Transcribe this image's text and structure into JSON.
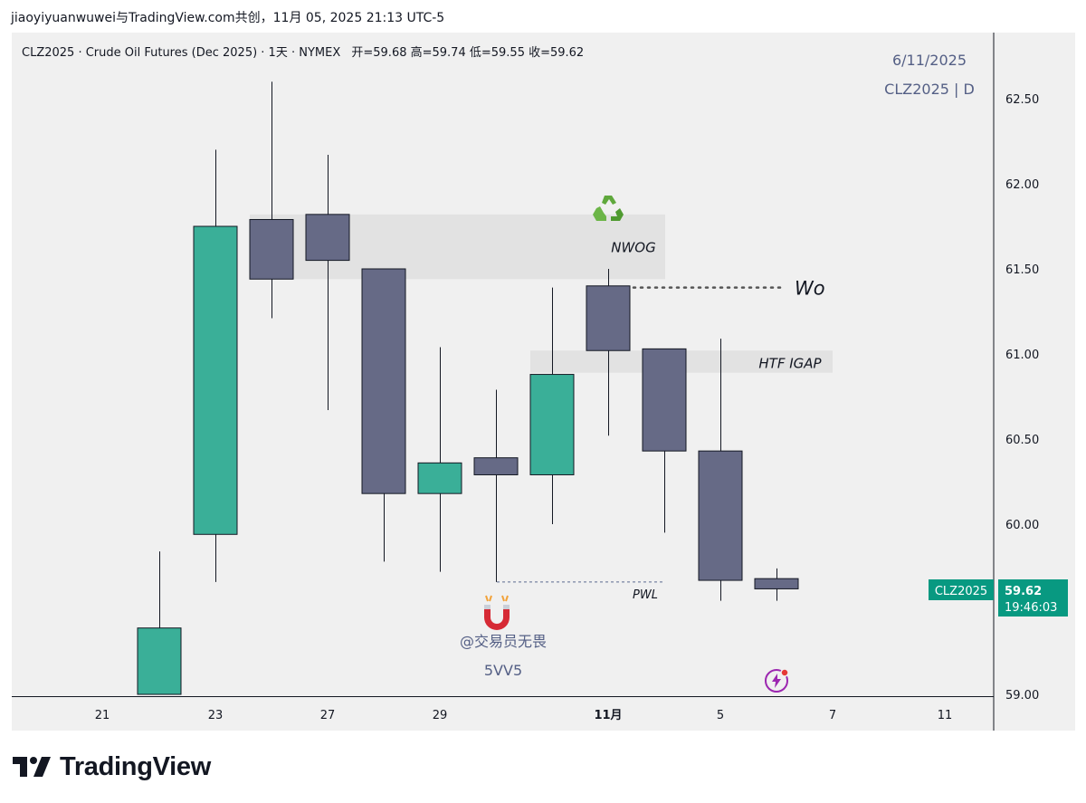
{
  "share_line": "jiaoyiyuanwuwei与TradingView.com共创，11月 05, 2025 21:13 UTC-5",
  "header": {
    "symbol": "CLZ2025",
    "name": "Crude Oil Futures (Dec 2025)",
    "interval": "1天",
    "exchange": "NYMEX",
    "ohlc_text": "开=59.68  高=59.74  低=59.55  收=59.62",
    "full": "CLZ2025 · Crude Oil Futures (Dec 2025) · 1天 · NYMEX"
  },
  "watermark": {
    "date": "6/11/2025",
    "symbol_interval": "CLZ2025 | D",
    "author": "@交易员无畏",
    "code": "5VV5"
  },
  "price_tag": {
    "symbol": "CLZ2025",
    "price": "59.62",
    "countdown": "19:46:03"
  },
  "colors": {
    "up": "#3aaf98",
    "down": "#666a86",
    "axis_text": "#131722",
    "tag_bg": "#089981",
    "panel": "#f0f0f0",
    "zone": "#e2e2e2",
    "pwl_line": "#5b6a8e"
  },
  "brand": {
    "name": "TradingView"
  },
  "chart_data": {
    "type": "candlestick",
    "title": "CLZ2025 · Crude Oil Futures (Dec 2025) · 1天 · NYMEX",
    "ylim": [
      58.98,
      62.87
    ],
    "y_ticks": [
      "59.00",
      "60.00",
      "60.50",
      "61.00",
      "61.50",
      "62.00",
      "62.50"
    ],
    "x_ticks": [
      "21",
      "23",
      "27",
      "29",
      "11月",
      "5",
      "7",
      "11"
    ],
    "candles": [
      {
        "open": 59.0,
        "high": 59.84,
        "low": 59.0,
        "close": 59.39
      },
      {
        "open": 59.94,
        "high": 62.2,
        "low": 59.66,
        "close": 61.75
      },
      {
        "open": 61.79,
        "high": 62.6,
        "low": 61.21,
        "close": 61.44
      },
      {
        "open": 61.82,
        "high": 62.17,
        "low": 60.67,
        "close": 61.55
      },
      {
        "open": 61.5,
        "high": 61.5,
        "low": 59.78,
        "close": 60.18
      },
      {
        "open": 60.18,
        "high": 61.04,
        "low": 59.72,
        "close": 60.36
      },
      {
        "open": 60.39,
        "high": 60.79,
        "low": 59.66,
        "close": 60.29
      },
      {
        "open": 60.29,
        "high": 61.39,
        "low": 60.0,
        "close": 60.88
      },
      {
        "open": 61.4,
        "high": 61.5,
        "low": 60.52,
        "close": 61.02
      },
      {
        "open": 61.03,
        "high": 61.03,
        "low": 59.95,
        "close": 60.43
      },
      {
        "open": 60.43,
        "high": 61.09,
        "low": 59.55,
        "close": 59.67
      },
      {
        "open": 59.68,
        "high": 59.74,
        "low": 59.55,
        "close": 59.62
      }
    ],
    "annotations": [
      {
        "label": "NWOG",
        "type": "zone",
        "price_low": 61.44,
        "price_high": 61.82
      },
      {
        "label": "HTF IGAP",
        "type": "zone",
        "price_low": 60.89,
        "price_high": 61.02
      },
      {
        "label": "Wo",
        "type": "dotted_level",
        "price": 61.39
      },
      {
        "label": "PWL",
        "type": "dashed_level",
        "price": 59.66
      }
    ],
    "last_price": 59.62
  }
}
